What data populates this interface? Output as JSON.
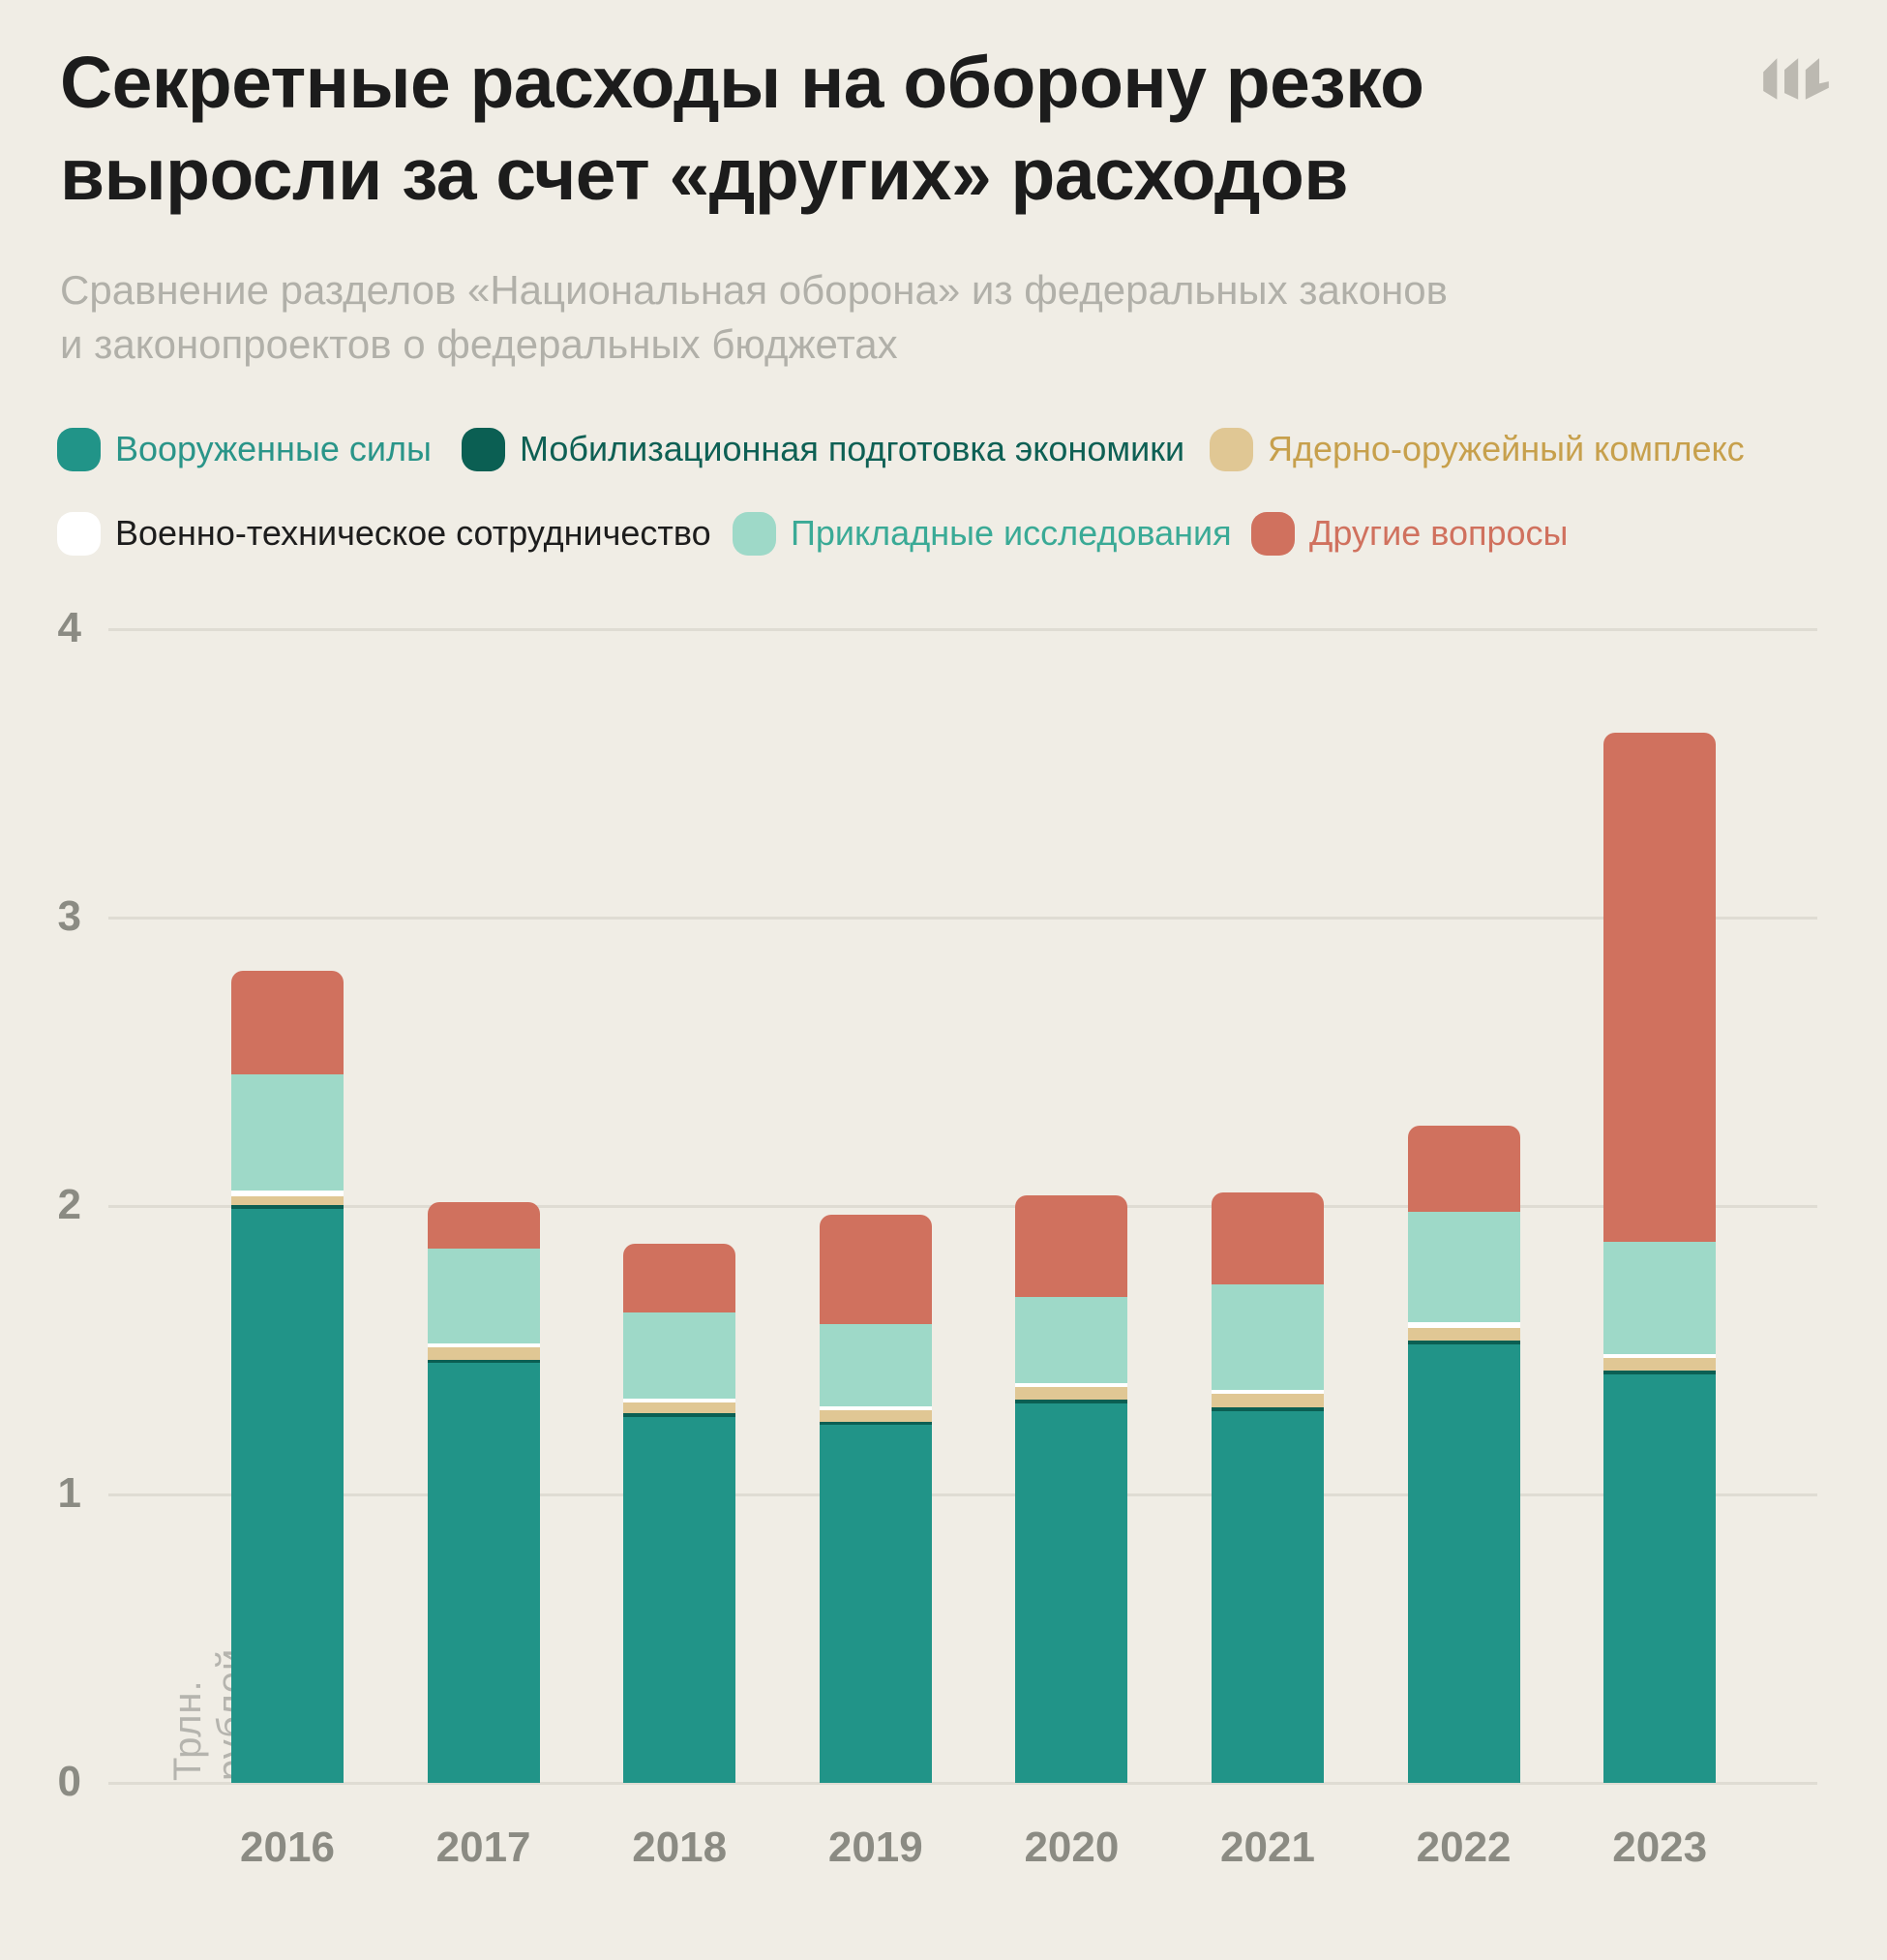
{
  "page": {
    "title_line1": "Секретные расходы на оборону резко",
    "title_line2": "выросли за счет «других» расходов",
    "subtitle_line1": "Сравнение разделов «Национальная оборона» из федеральных законов",
    "subtitle_line2": "и законопроектов о федеральных бюджетах",
    "logo_name": "meduza-monogram"
  },
  "colors": {
    "background": "#f0ede5",
    "title_text": "#1c1c1c",
    "subtitle_text": "#b1b0a9",
    "axis_text": "#8b8b83",
    "unit_text": "#b5b4ae",
    "gridline": "#dfdcd3",
    "logo": "#bcb9b1"
  },
  "chart_data": {
    "type": "bar",
    "stacked": true,
    "title": "Секретные расходы на оборону резко выросли за счет «других» расходов",
    "subtitle": "Сравнение разделов «Национальная оборона» из федеральных законов и законопроектов о федеральных бюджетах",
    "unit_label": "Трлн. рублей",
    "xlabel": "",
    "ylabel": "Трлн. рублей",
    "ylim": [
      0,
      4
    ],
    "yticks": [
      0,
      1,
      2,
      3,
      4
    ],
    "grid": "horizontal",
    "legend_position": "top",
    "categories": [
      "2016",
      "2017",
      "2018",
      "2019",
      "2020",
      "2021",
      "2022",
      "2023"
    ],
    "series": [
      {
        "name": "Вооруженные силы",
        "color": "#219488",
        "label_color": "#2a9589",
        "values": [
          1.99,
          1.455,
          1.27,
          1.24,
          1.315,
          1.29,
          1.52,
          1.415
        ]
      },
      {
        "name": "Мобилизационная подготовка экономики",
        "color": "#0b5f53",
        "label_color": "#0e6054",
        "values": [
          0.012,
          0.013,
          0.013,
          0.012,
          0.013,
          0.012,
          0.013,
          0.013
        ]
      },
      {
        "name": "Ядерно-оружейный комплекс",
        "color": "#e0c794",
        "label_color": "#c7a04c",
        "values": [
          0.033,
          0.042,
          0.037,
          0.04,
          0.045,
          0.048,
          0.045,
          0.045
        ]
      },
      {
        "name": "Военно-техническое сотрудничество",
        "color": "#ffffff",
        "label_color": "#1d1d1d",
        "values": [
          0.02,
          0.012,
          0.013,
          0.013,
          0.013,
          0.012,
          0.018,
          0.013
        ]
      },
      {
        "name": "Прикладные исследования",
        "color": "#9ed9c8",
        "label_color": "#3aaa96",
        "values": [
          0.4,
          0.33,
          0.297,
          0.285,
          0.3,
          0.365,
          0.384,
          0.39
        ]
      },
      {
        "name": "Другие вопросы",
        "color": "#d0715e",
        "label_color": "#d0715e",
        "values": [
          0.36,
          0.16,
          0.24,
          0.38,
          0.35,
          0.32,
          0.3,
          1.765
        ]
      }
    ],
    "totals": [
      2.82,
      2.01,
      1.87,
      1.97,
      2.04,
      2.05,
      2.28,
      3.64
    ]
  }
}
